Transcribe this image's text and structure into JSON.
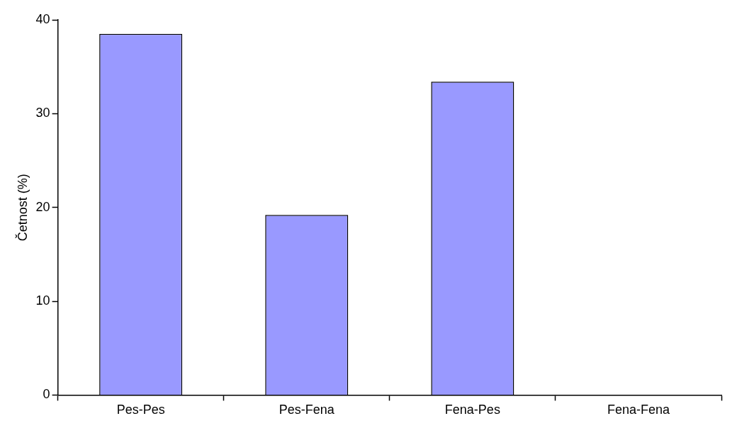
{
  "chart_data": {
    "type": "bar",
    "ylabel": "Četnost (%)",
    "categories": [
      "Pes-Pes",
      "Pes-Fena",
      "Fena-Pes",
      "Fena-Fena"
    ],
    "values": [
      38.5,
      19.2,
      33.4,
      0
    ],
    "color": "#9999ff",
    "ylim": [
      0,
      40
    ],
    "yticks": [
      0,
      10,
      20,
      30,
      40
    ],
    "grid": false,
    "legend": false
  }
}
